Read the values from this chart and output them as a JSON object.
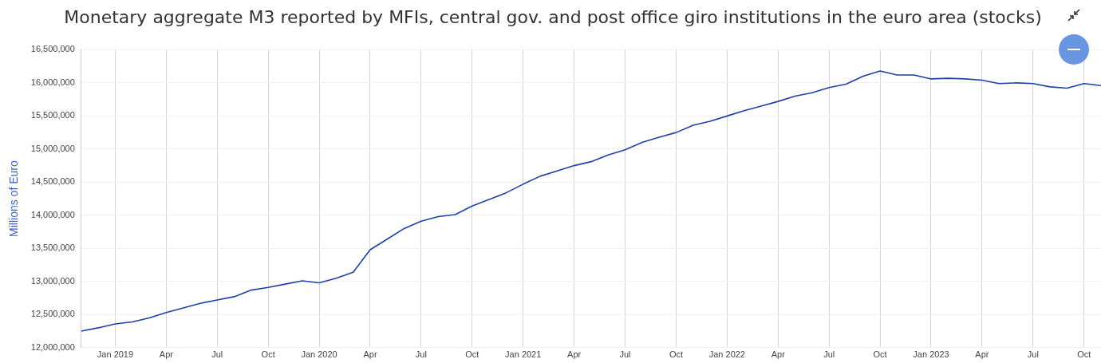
{
  "chart_data": {
    "type": "line",
    "title": "Monetary aggregate M3 reported by MFIs, central gov. and post office giro institutions in the euro area (stocks)",
    "ylabel": "Millions of Euro",
    "x": [
      "2018-11",
      "2018-12",
      "2019-01",
      "2019-02",
      "2019-03",
      "2019-04",
      "2019-05",
      "2019-06",
      "2019-07",
      "2019-08",
      "2019-09",
      "2019-10",
      "2019-11",
      "2019-12",
      "2020-01",
      "2020-02",
      "2020-03",
      "2020-04",
      "2020-05",
      "2020-06",
      "2020-07",
      "2020-08",
      "2020-09",
      "2020-10",
      "2020-11",
      "2020-12",
      "2021-01",
      "2021-02",
      "2021-03",
      "2021-04",
      "2021-05",
      "2021-06",
      "2021-07",
      "2021-08",
      "2021-09",
      "2021-10",
      "2021-11",
      "2021-12",
      "2022-01",
      "2022-02",
      "2022-03",
      "2022-04",
      "2022-05",
      "2022-06",
      "2022-07",
      "2022-08",
      "2022-09",
      "2022-10",
      "2022-11",
      "2022-12",
      "2023-01",
      "2023-02",
      "2023-03",
      "2023-04",
      "2023-05",
      "2023-06",
      "2023-07",
      "2023-08",
      "2023-09",
      "2023-10",
      "2023-11"
    ],
    "series": [
      {
        "color": "#1f40a8",
        "values": [
          12250000,
          12300000,
          12360000,
          12390000,
          12450000,
          12530000,
          12600000,
          12670000,
          12720000,
          12770000,
          12870000,
          12910000,
          12960000,
          13010000,
          12980000,
          13050000,
          13140000,
          13480000,
          13640000,
          13800000,
          13910000,
          13980000,
          14010000,
          14140000,
          14240000,
          14340000,
          14470000,
          14590000,
          14670000,
          14750000,
          14810000,
          14910000,
          14990000,
          15100000,
          15180000,
          15250000,
          15360000,
          15420000,
          15500000,
          15580000,
          15650000,
          15720000,
          15800000,
          15850000,
          15930000,
          15980000,
          16100000,
          16180000,
          16120000,
          16120000,
          16060000,
          16070000,
          16060000,
          16040000,
          15990000,
          16000000,
          15990000,
          15940000,
          15920000,
          15990000,
          15960000
        ]
      }
    ],
    "xlim": [
      "2018-11",
      "2023-11"
    ],
    "xticks": [
      {
        "value": "2019-01",
        "label": "Jan 2019"
      },
      {
        "value": "2019-04",
        "label": "Apr"
      },
      {
        "value": "2019-07",
        "label": "Jul"
      },
      {
        "value": "2019-10",
        "label": "Oct"
      },
      {
        "value": "2020-01",
        "label": "Jan 2020"
      },
      {
        "value": "2020-04",
        "label": "Apr"
      },
      {
        "value": "2020-07",
        "label": "Jul"
      },
      {
        "value": "2020-10",
        "label": "Oct"
      },
      {
        "value": "2021-01",
        "label": "Jan 2021"
      },
      {
        "value": "2021-04",
        "label": "Apr"
      },
      {
        "value": "2021-07",
        "label": "Jul"
      },
      {
        "value": "2021-10",
        "label": "Oct"
      },
      {
        "value": "2022-01",
        "label": "Jan 2022"
      },
      {
        "value": "2022-04",
        "label": "Apr"
      },
      {
        "value": "2022-07",
        "label": "Jul"
      },
      {
        "value": "2022-10",
        "label": "Oct"
      },
      {
        "value": "2023-01",
        "label": "Jan 2023"
      },
      {
        "value": "2023-04",
        "label": "Apr"
      },
      {
        "value": "2023-07",
        "label": "Jul"
      },
      {
        "value": "2023-10",
        "label": "Oct"
      }
    ],
    "ylim": [
      12000000,
      16500000
    ],
    "yticks": [
      {
        "value": 12000000,
        "label": "12,000,000"
      },
      {
        "value": 12500000,
        "label": "12,500,000"
      },
      {
        "value": 13000000,
        "label": "13,000,000"
      },
      {
        "value": 13500000,
        "label": "13,500,000"
      },
      {
        "value": 14000000,
        "label": "14,000,000"
      },
      {
        "value": 14500000,
        "label": "14,500,000"
      },
      {
        "value": 15000000,
        "label": "15,000,000"
      },
      {
        "value": 15500000,
        "label": "15,500,000"
      },
      {
        "value": 16000000,
        "label": "16,000,000"
      },
      {
        "value": 16500000,
        "label": "16,500,000"
      }
    ],
    "grid": true,
    "legend": false,
    "marker": "none",
    "line_style": "solid"
  }
}
